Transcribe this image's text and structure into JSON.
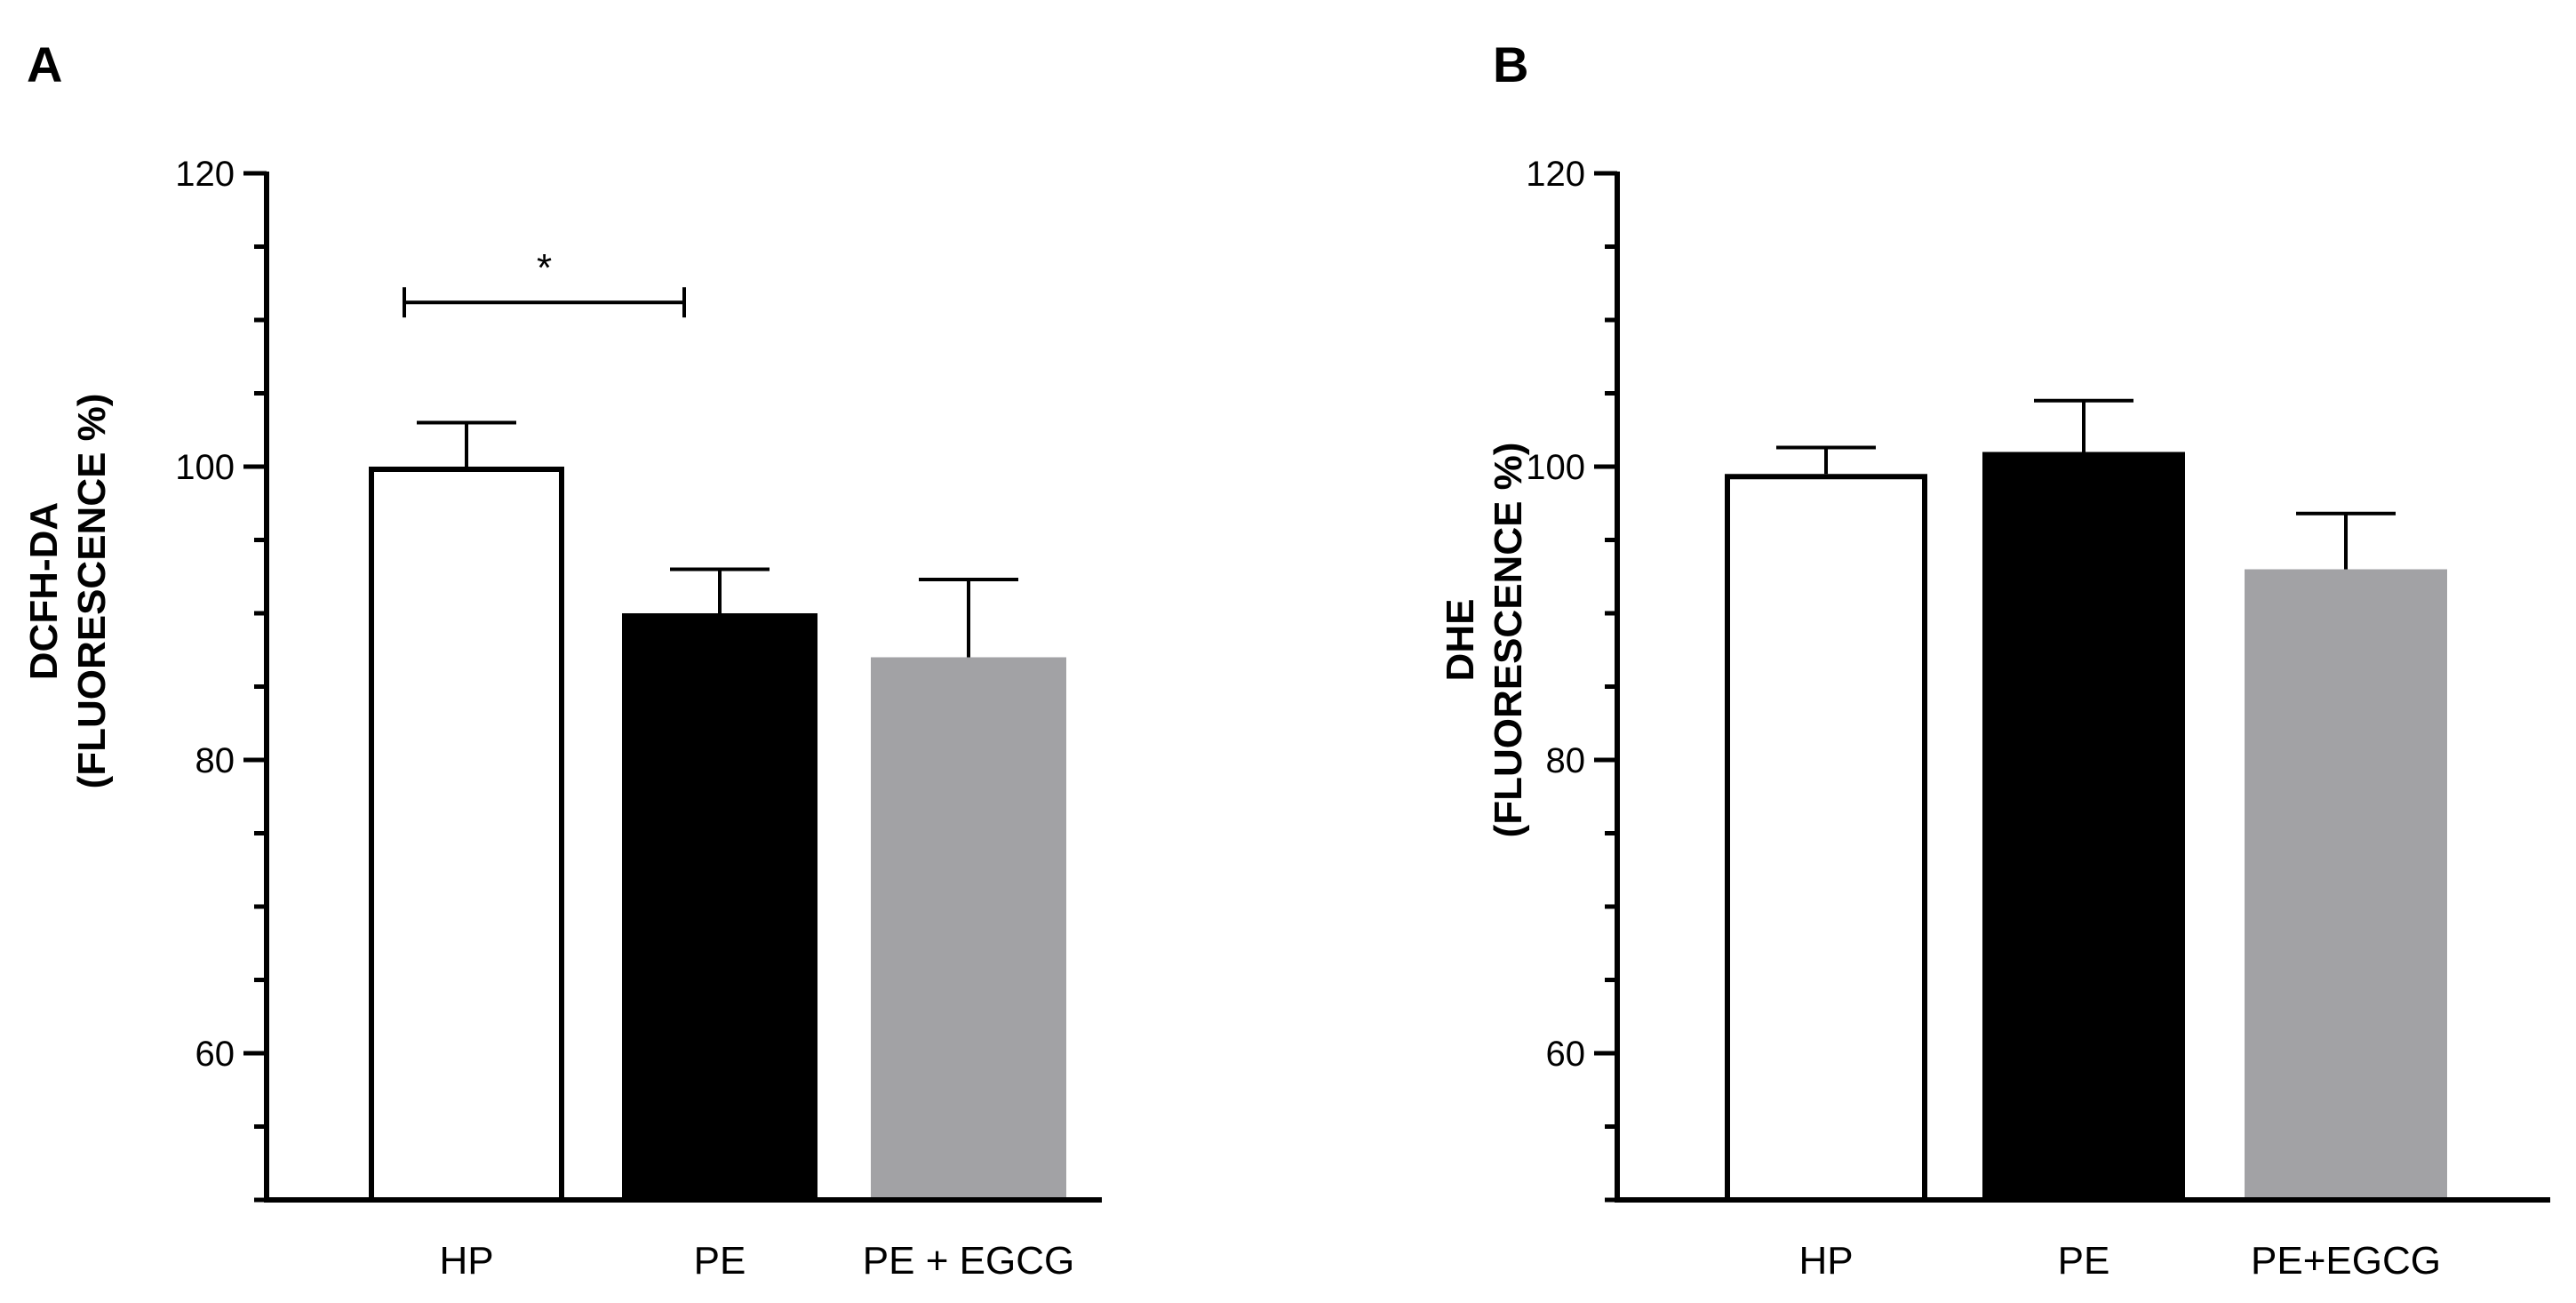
{
  "chart_data": [
    {
      "type": "bar",
      "panel_label": "A",
      "ylabel_lines": [
        "DCFH-DA",
        "(FLUORESCENCE %)"
      ],
      "xlabel": "",
      "categories": [
        "HP",
        "PE",
        "PE + EGCG"
      ],
      "values": [
        100,
        90,
        87
      ],
      "errors": [
        3,
        3,
        5.3
      ],
      "bar_colors": [
        "#ffffff",
        "#000000",
        "#a2a2a5"
      ],
      "ylim": [
        50,
        120
      ],
      "yticks": [
        60,
        80,
        100,
        120
      ],
      "ytick_labels": [
        "60",
        "80",
        "100",
        "120"
      ],
      "significance": [
        {
          "from": "HP",
          "to": "PE",
          "y": 111.2,
          "label": "*"
        }
      ]
    },
    {
      "type": "bar",
      "panel_label": "B",
      "ylabel_lines": [
        "DHE",
        "(FLUORESCENCE %)"
      ],
      "xlabel": "",
      "categories": [
        "HP",
        "PE",
        "PE+EGCG"
      ],
      "values": [
        99.5,
        101,
        93
      ],
      "errors": [
        1.8,
        3.5,
        3.8
      ],
      "bar_colors": [
        "#ffffff",
        "#000000",
        "#a2a2a5"
      ],
      "ylim": [
        50,
        120
      ],
      "yticks": [
        60,
        80,
        100,
        120
      ],
      "ytick_labels": [
        "60",
        "80",
        "100",
        "120"
      ],
      "significance": []
    }
  ]
}
